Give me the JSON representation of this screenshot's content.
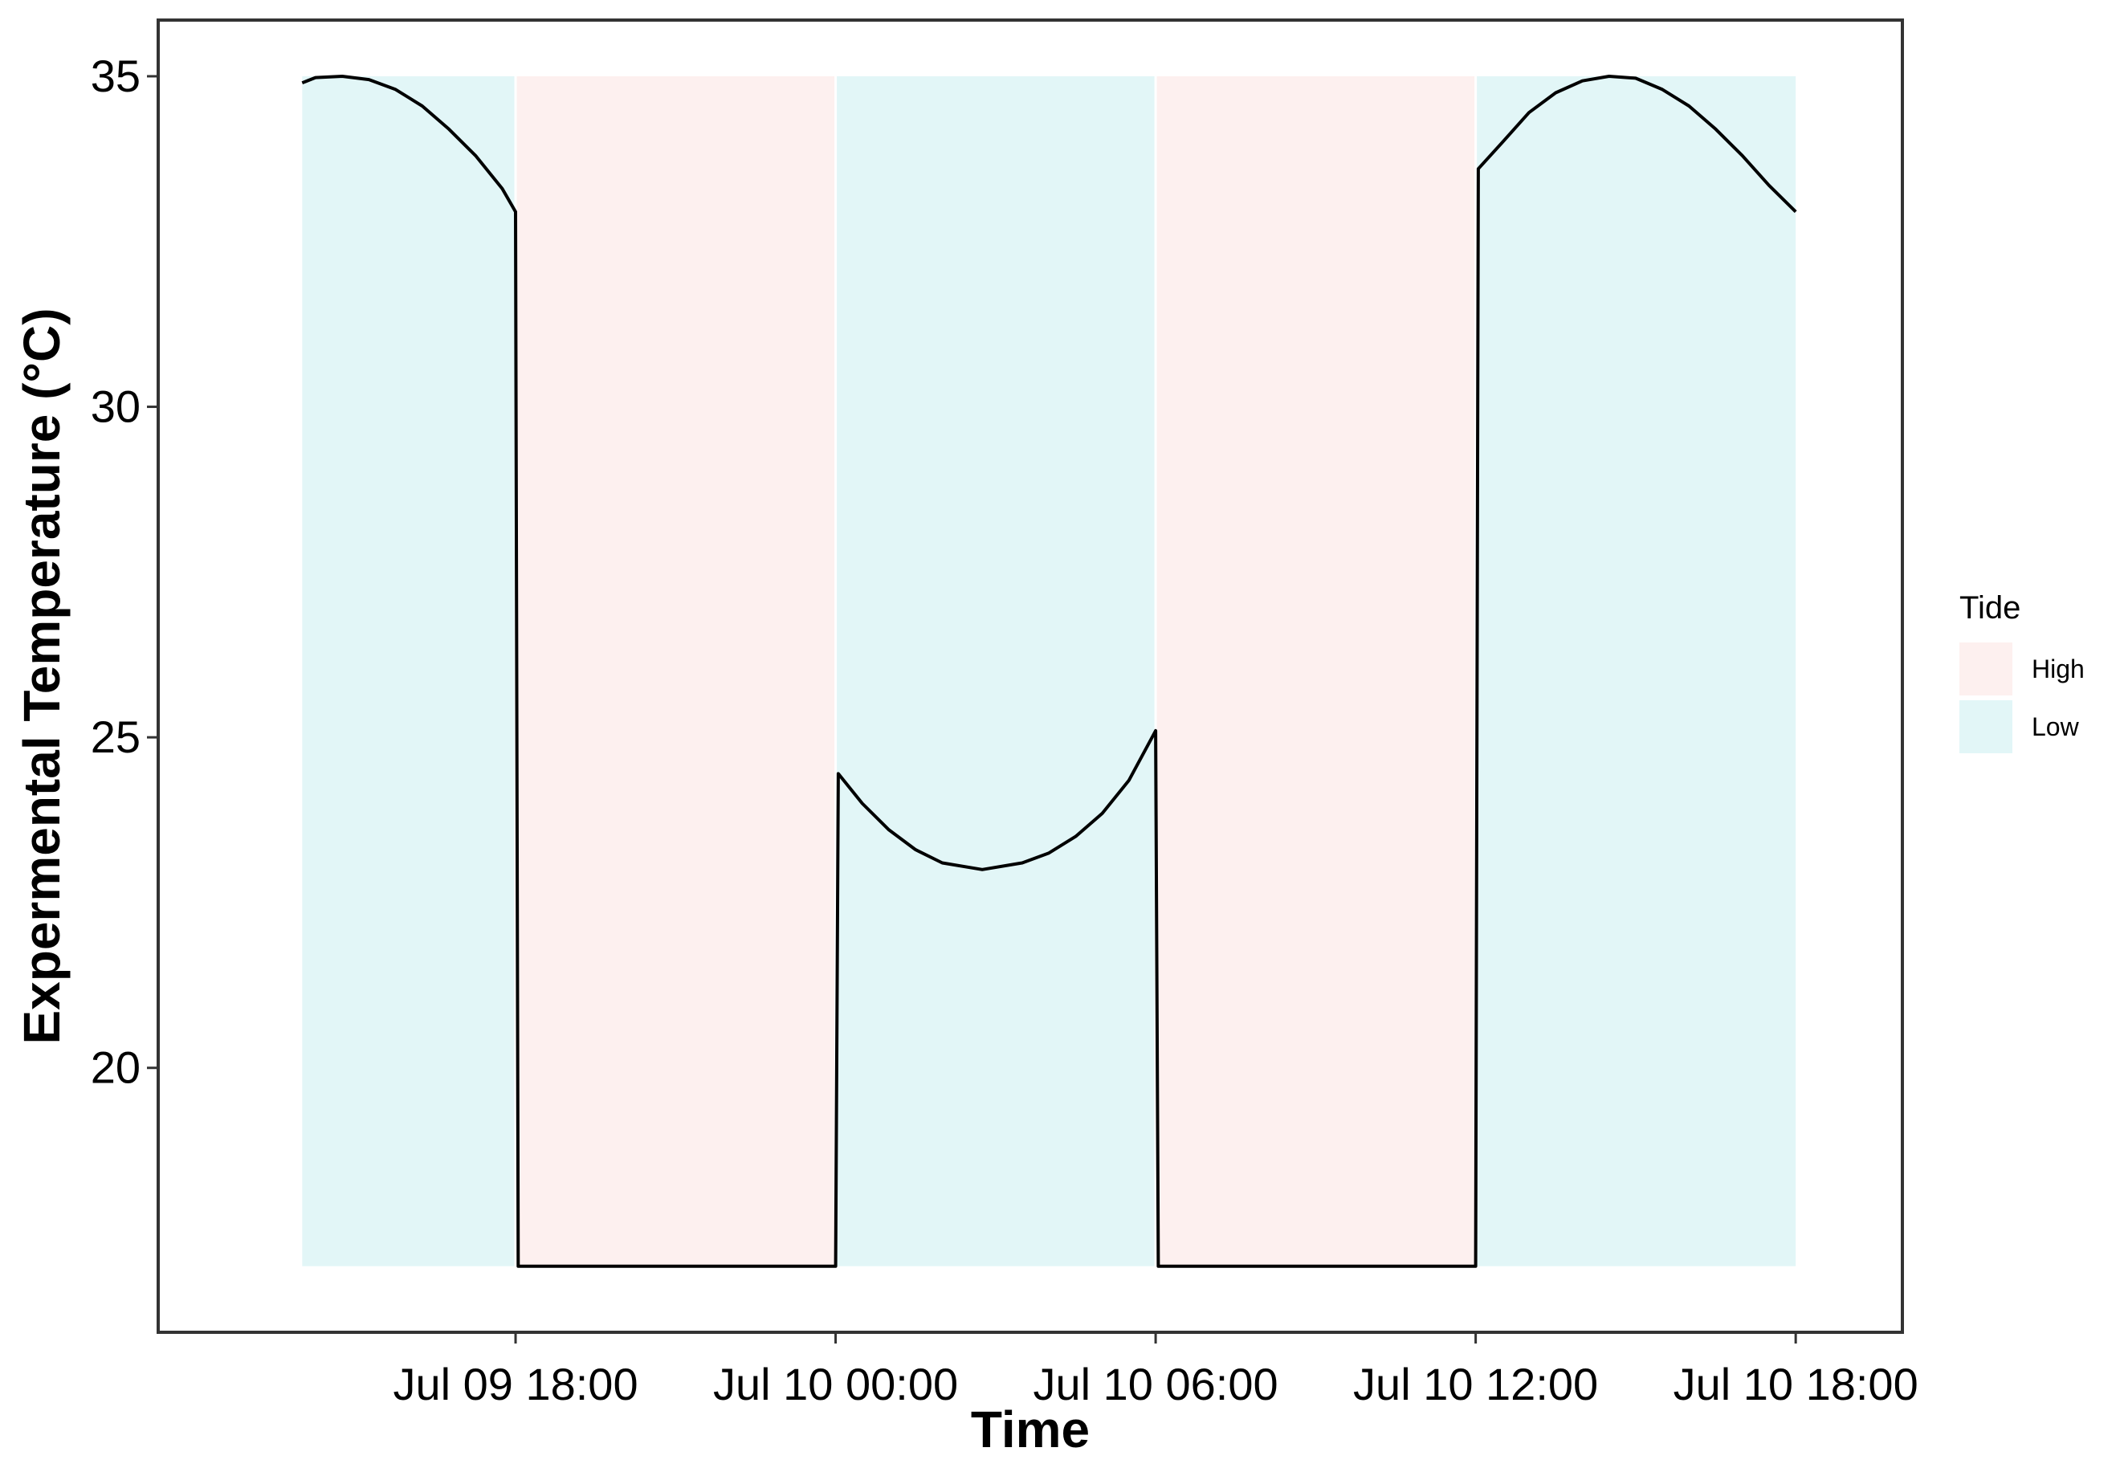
{
  "chart_data": {
    "type": "line",
    "title": "",
    "xlabel": "Time",
    "ylabel": "Expermental Temperature (°C)",
    "x_ticks": [
      {
        "time": "2021-07-09 18:00",
        "label": "Jul 09 18:00"
      },
      {
        "time": "2021-07-10 00:00",
        "label": "Jul 10 00:00"
      },
      {
        "time": "2021-07-10 06:00",
        "label": "Jul 10 06:00"
      },
      {
        "time": "2021-07-10 12:00",
        "label": "Jul 10 12:00"
      },
      {
        "time": "2021-07-10 18:00",
        "label": "Jul 10 18:00"
      }
    ],
    "y_ticks": [
      {
        "value": 20,
        "label": "20"
      },
      {
        "value": 25,
        "label": "25"
      },
      {
        "value": 30,
        "label": "30"
      },
      {
        "value": 35,
        "label": "35"
      }
    ],
    "xlim": [
      "2021-07-09 11:18",
      "2021-07-10 20:00"
    ],
    "ylim": [
      16,
      35.85
    ],
    "grid": false,
    "legend": {
      "title": "Tide",
      "placement": "right",
      "entries": [
        {
          "label": "High",
          "color": "#fdf0ef"
        },
        {
          "label": "Low",
          "color": "#e2f6f7"
        }
      ]
    },
    "tide_bands": [
      {
        "tide": "Low",
        "start": "2021-07-09 14:00",
        "end": "2021-07-09 18:00",
        "ymin": 17,
        "ymax": 35
      },
      {
        "tide": "High",
        "start": "2021-07-09 18:00",
        "end": "2021-07-10 00:00",
        "ymin": 17,
        "ymax": 35
      },
      {
        "tide": "Low",
        "start": "2021-07-10 00:00",
        "end": "2021-07-10 06:00",
        "ymin": 17,
        "ymax": 35
      },
      {
        "tide": "High",
        "start": "2021-07-10 06:00",
        "end": "2021-07-10 12:00",
        "ymin": 17,
        "ymax": 35
      },
      {
        "tide": "Low",
        "start": "2021-07-10 12:00",
        "end": "2021-07-10 18:00",
        "ymin": 17,
        "ymax": 35
      }
    ],
    "series": [
      {
        "color": "#000000",
        "points": [
          {
            "t": "2021-07-09 14:00",
            "y": 34.9
          },
          {
            "t": "2021-07-09 14:15",
            "y": 34.98
          },
          {
            "t": "2021-07-09 14:45",
            "y": 35.0
          },
          {
            "t": "2021-07-09 15:15",
            "y": 34.95
          },
          {
            "t": "2021-07-09 15:45",
            "y": 34.8
          },
          {
            "t": "2021-07-09 16:15",
            "y": 34.55
          },
          {
            "t": "2021-07-09 16:45",
            "y": 34.2
          },
          {
            "t": "2021-07-09 17:15",
            "y": 33.8
          },
          {
            "t": "2021-07-09 17:45",
            "y": 33.3
          },
          {
            "t": "2021-07-09 18:00",
            "y": 32.95
          },
          {
            "t": "2021-07-09 18:03",
            "y": 17
          },
          {
            "t": "2021-07-10 00:00",
            "y": 17
          },
          {
            "t": "2021-07-10 00:03",
            "y": 24.45
          },
          {
            "t": "2021-07-10 00:30",
            "y": 24.0
          },
          {
            "t": "2021-07-10 01:00",
            "y": 23.6
          },
          {
            "t": "2021-07-10 01:30",
            "y": 23.3
          },
          {
            "t": "2021-07-10 02:00",
            "y": 23.1
          },
          {
            "t": "2021-07-10 02:45",
            "y": 23.0
          },
          {
            "t": "2021-07-10 03:30",
            "y": 23.1
          },
          {
            "t": "2021-07-10 04:00",
            "y": 23.25
          },
          {
            "t": "2021-07-10 04:30",
            "y": 23.5
          },
          {
            "t": "2021-07-10 05:00",
            "y": 23.85
          },
          {
            "t": "2021-07-10 05:30",
            "y": 24.35
          },
          {
            "t": "2021-07-10 06:00",
            "y": 25.1
          },
          {
            "t": "2021-07-10 06:03",
            "y": 17
          },
          {
            "t": "2021-07-10 12:00",
            "y": 17
          },
          {
            "t": "2021-07-10 12:03",
            "y": 33.6
          },
          {
            "t": "2021-07-10 12:30",
            "y": 34.0
          },
          {
            "t": "2021-07-10 13:00",
            "y": 34.45
          },
          {
            "t": "2021-07-10 13:30",
            "y": 34.75
          },
          {
            "t": "2021-07-10 14:00",
            "y": 34.93
          },
          {
            "t": "2021-07-10 14:30",
            "y": 35.0
          },
          {
            "t": "2021-07-10 15:00",
            "y": 34.97
          },
          {
            "t": "2021-07-10 15:30",
            "y": 34.8
          },
          {
            "t": "2021-07-10 16:00",
            "y": 34.55
          },
          {
            "t": "2021-07-10 16:30",
            "y": 34.2
          },
          {
            "t": "2021-07-10 17:00",
            "y": 33.8
          },
          {
            "t": "2021-07-10 17:30",
            "y": 33.35
          },
          {
            "t": "2021-07-10 18:00",
            "y": 32.95
          }
        ]
      }
    ]
  }
}
